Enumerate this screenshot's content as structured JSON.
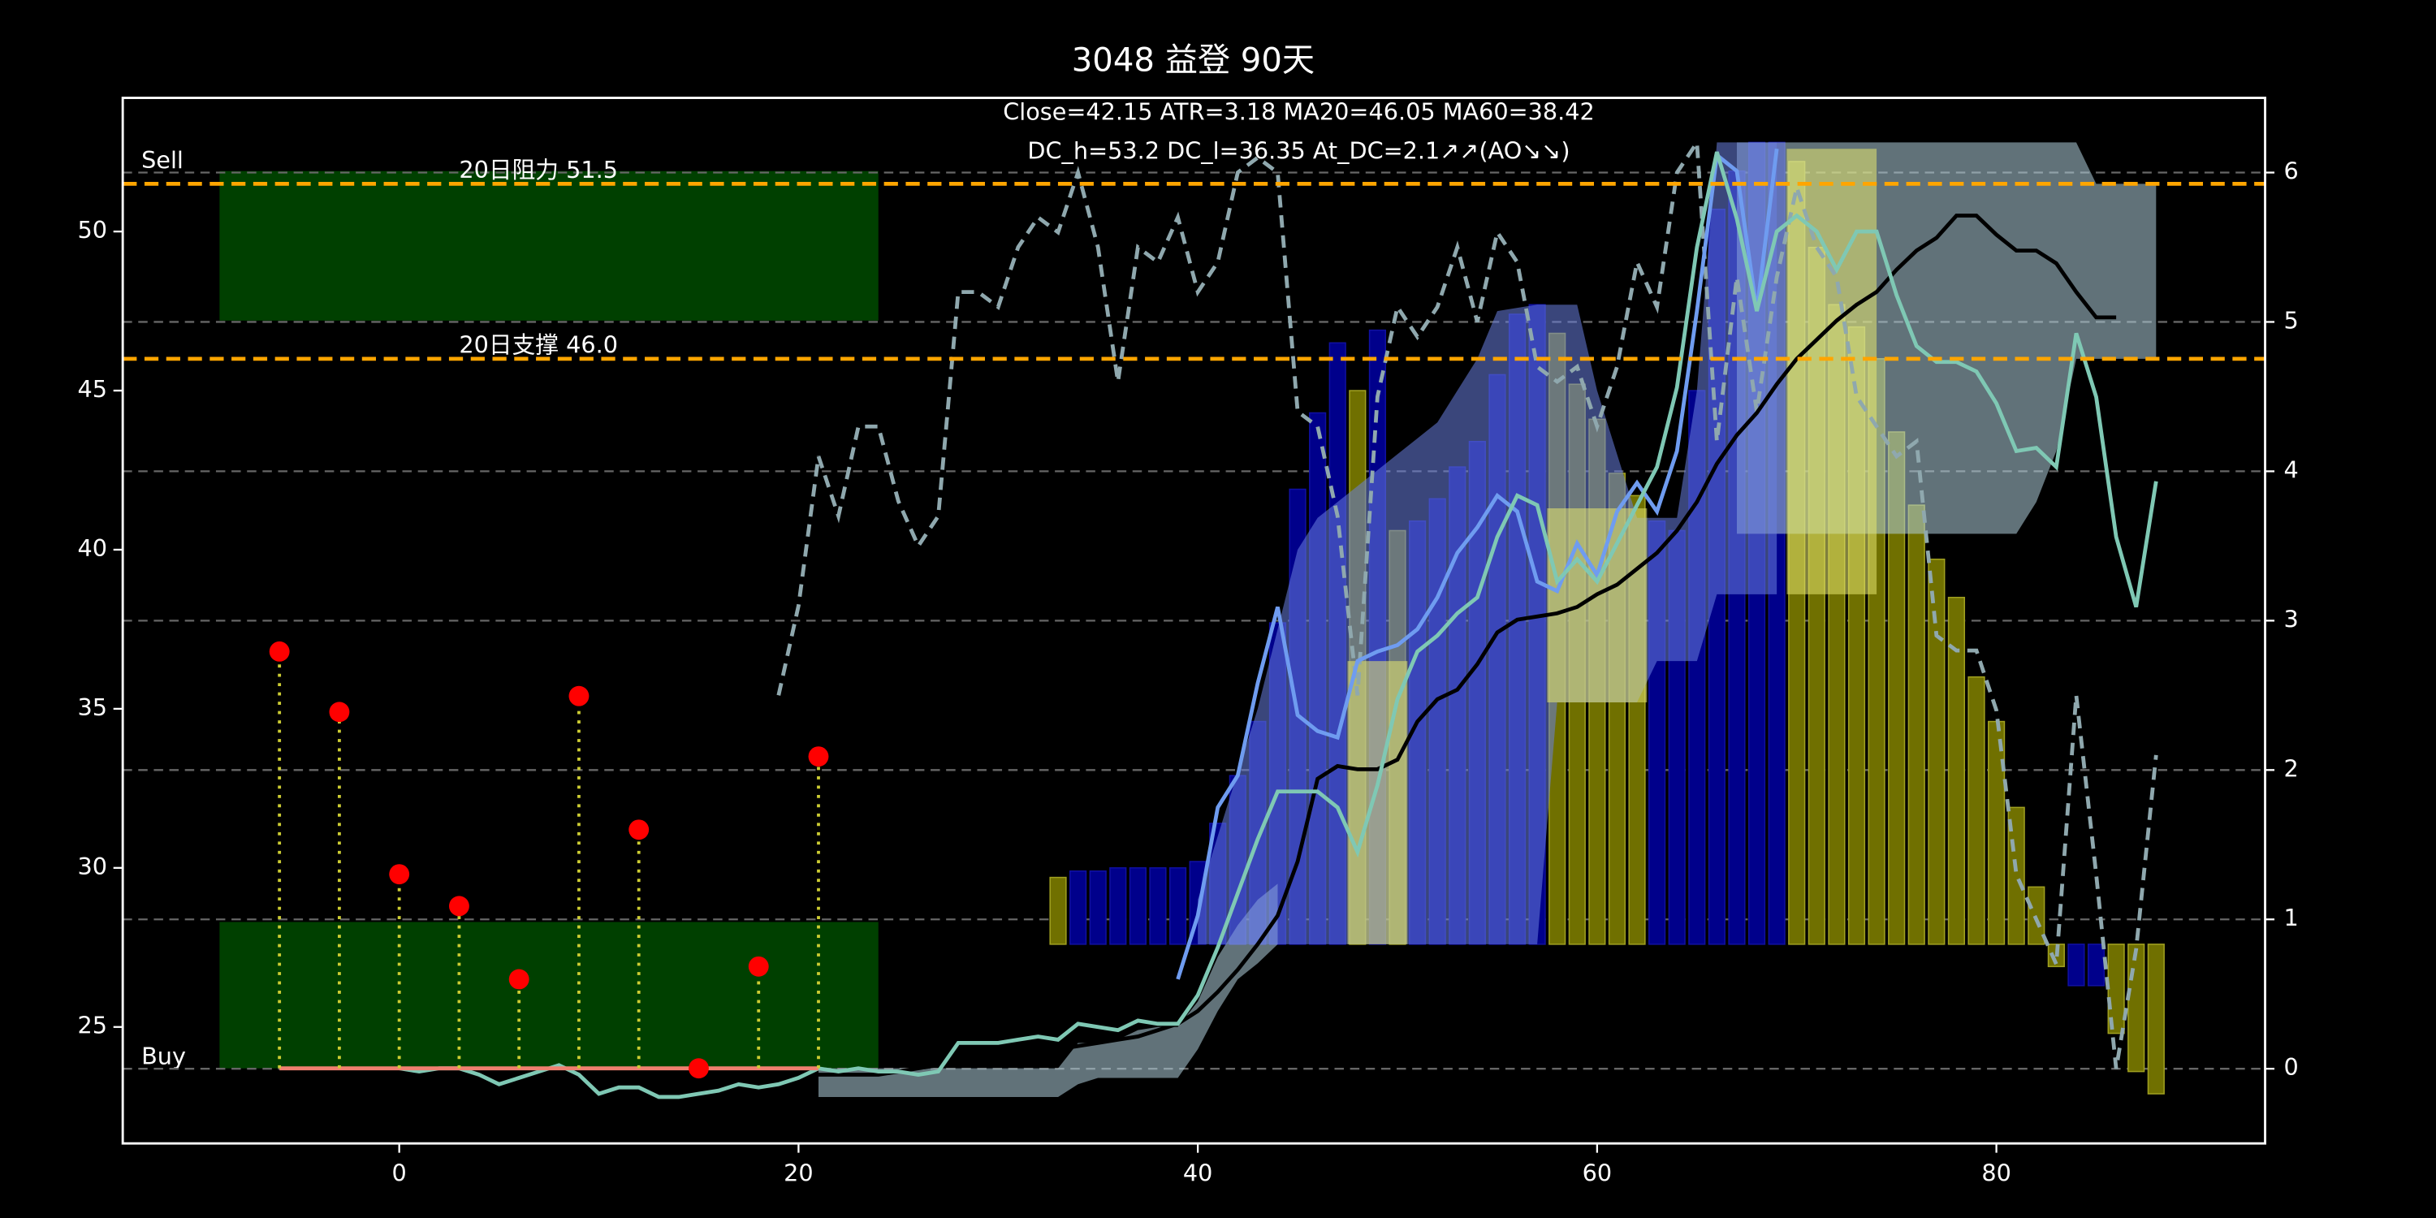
{
  "chart_data": {
    "type": "composite",
    "title": "3048 益登 90天",
    "annotations": [
      "Close=42.15 ATR=3.18 MA20=46.05 MA60=38.42",
      "DC_h=53.2 DC_l=36.35 At_DC=2.1↗↗(AO↘↘)"
    ],
    "xlim": [
      -13.85,
      93.46
    ],
    "ylim": [
      21.34,
      54.2
    ],
    "y2lim": [
      -0.5,
      6.5
    ],
    "xticks": [
      0,
      20,
      40,
      60,
      80
    ],
    "yticks": [
      25,
      30,
      35,
      40,
      45,
      50
    ],
    "y2ticks": [
      0,
      1,
      2,
      3,
      4,
      5,
      6
    ],
    "grid": "y2",
    "zones": [
      {
        "label": "Sell",
        "label_at": "top",
        "x": [
          -9,
          24
        ],
        "y": [
          47.2,
          51.9
        ],
        "color": "#004000"
      },
      {
        "label": "Buy",
        "label_at": "bottom",
        "x": [
          -9,
          24
        ],
        "y": [
          23.7,
          28.3
        ],
        "color": "#004000"
      }
    ],
    "hlines": [
      {
        "value": 51.5,
        "label": "20日阻力 51.5",
        "color": "#ffa500"
      },
      {
        "value": 46.0,
        "label": "20日支撑 46.0",
        "color": "#ffa500"
      }
    ],
    "bars": {
      "base": 27.6,
      "x": [
        33,
        34,
        35,
        36,
        37,
        38,
        39,
        40,
        41,
        42,
        43,
        44,
        45,
        46,
        47,
        48,
        49,
        50,
        51,
        52,
        53,
        54,
        55,
        56,
        57,
        58,
        59,
        60,
        61,
        62,
        63,
        64,
        65,
        66,
        67,
        68,
        69,
        70,
        71,
        72,
        73,
        74,
        75,
        76,
        77,
        78,
        79,
        80,
        81,
        82,
        83,
        84,
        85,
        86,
        87,
        88
      ],
      "values": [
        29.7,
        29.9,
        29.9,
        30.0,
        30.0,
        30.0,
        30.0,
        30.2,
        31.4,
        32.9,
        34.6,
        37.7,
        41.9,
        44.3,
        46.5,
        45.0,
        46.9,
        40.6,
        40.9,
        41.6,
        42.6,
        43.4,
        45.5,
        47.4,
        47.7,
        46.8,
        45.2,
        44.1,
        42.4,
        41.7,
        40.9,
        40.6,
        45.0,
        50.7,
        51.9,
        52.8,
        52.8,
        52.2,
        49.5,
        47.7,
        47.0,
        46.0,
        43.7,
        41.4,
        39.7,
        38.5,
        36.0,
        34.6,
        31.9,
        29.4,
        26.9,
        26.3,
        26.3,
        24.8,
        23.6,
        22.9
      ],
      "colors": [
        "#707000",
        "#00008b",
        "#00008b",
        "#00008b",
        "#00008b",
        "#00008b",
        "#00008b",
        "#00008b",
        "#00008b",
        "#00008b",
        "#00008b",
        "#00008b",
        "#00008b",
        "#00008b",
        "#00008b",
        "#707000",
        "#00008b",
        "#707000",
        "#00008b",
        "#00008b",
        "#00008b",
        "#00008b",
        "#00008b",
        "#00008b",
        "#00008b",
        "#707000",
        "#707000",
        "#707000",
        "#707000",
        "#707000",
        "#00008b",
        "#00008b",
        "#00008b",
        "#00008b",
        "#00008b",
        "#00008b",
        "#00008b",
        "#707000",
        "#707000",
        "#707000",
        "#707000",
        "#707000",
        "#707000",
        "#707000",
        "#707000",
        "#707000",
        "#707000",
        "#707000",
        "#707000",
        "#707000",
        "#707000",
        "#00008b",
        "#00008b",
        "#707000",
        "#707000",
        "#707000"
      ]
    },
    "bands": [
      {
        "color": "#b0d0dc",
        "x": [
          21,
          22,
          23,
          24,
          25,
          26,
          27,
          28,
          29,
          30,
          31,
          32,
          33,
          34,
          35,
          36,
          37,
          38,
          39,
          40,
          41,
          42,
          43,
          44
        ],
        "lower": [
          22.8,
          22.8,
          22.8,
          22.8,
          22.8,
          22.8,
          22.8,
          22.8,
          22.8,
          22.8,
          22.8,
          22.8,
          22.8,
          23.2,
          23.4,
          23.4,
          23.4,
          23.4,
          23.4,
          24.3,
          25.5,
          26.5,
          27.0,
          27.6
        ],
        "upper": [
          23.7,
          23.7,
          23.7,
          23.7,
          23.7,
          23.7,
          23.7,
          23.7,
          23.7,
          23.7,
          23.7,
          23.7,
          23.7,
          24.5,
          24.5,
          24.6,
          24.9,
          25.0,
          25.0,
          25.8,
          27.2,
          28.2,
          29.0,
          29.5
        ]
      },
      {
        "color": "#b0d0dc",
        "x": [
          67,
          68,
          69,
          70,
          71,
          72,
          73,
          74,
          75,
          76,
          77,
          78,
          79,
          80,
          81,
          82,
          83,
          84,
          85,
          86,
          87,
          88
        ],
        "lower": [
          40.5,
          40.5,
          40.5,
          40.5,
          40.5,
          40.5,
          40.5,
          40.5,
          40.5,
          40.5,
          40.5,
          40.5,
          40.5,
          40.5,
          40.5,
          41.5,
          43.1,
          46.0,
          46.0,
          46.0,
          46.0,
          46.0
        ],
        "upper": [
          52.8,
          52.8,
          52.8,
          52.8,
          52.8,
          52.8,
          52.8,
          52.8,
          52.8,
          52.8,
          52.8,
          52.8,
          52.8,
          52.8,
          52.8,
          52.8,
          52.8,
          52.8,
          51.5,
          51.5,
          51.5,
          51.5
        ]
      },
      {
        "color": "#6a7fe0",
        "x": [
          40,
          41,
          42,
          43,
          44,
          45,
          46,
          47,
          48,
          49,
          50,
          51,
          52,
          53,
          54,
          55,
          56,
          57,
          58,
          59,
          60,
          61,
          62,
          63,
          64,
          65,
          66,
          67,
          68,
          69
        ],
        "lower": [
          27.6,
          27.6,
          27.6,
          27.6,
          27.6,
          27.6,
          27.6,
          27.6,
          27.6,
          27.6,
          27.6,
          27.6,
          27.6,
          27.6,
          27.6,
          27.6,
          27.6,
          27.6,
          35.2,
          35.2,
          35.2,
          35.2,
          35.2,
          36.5,
          36.5,
          36.5,
          38.6,
          38.6,
          38.6,
          38.6
        ],
        "upper": [
          29.0,
          31,
          33,
          35,
          37.5,
          40,
          41,
          41.5,
          42,
          42.5,
          43,
          43.5,
          44,
          45,
          46,
          47.5,
          47.6,
          47.7,
          47.7,
          47.7,
          45,
          43,
          41,
          41,
          41,
          45,
          52.8,
          52.8,
          52.8,
          52.8
        ]
      },
      {
        "color": "#e8e870",
        "x": [
          47.5,
          50.5
        ],
        "lower": [
          27.6,
          27.6
        ],
        "upper": [
          36.5,
          36.5
        ]
      },
      {
        "color": "#e8e870",
        "x": [
          57.5,
          62.5
        ],
        "lower": [
          35.2,
          35.2
        ],
        "upper": [
          41.3,
          41.3
        ]
      },
      {
        "color": "#e8e870",
        "x": [
          69.5,
          74
        ],
        "lower": [
          38.6,
          38.6
        ],
        "upper": [
          52.6,
          52.6
        ]
      }
    ],
    "lines": [
      {
        "color": "#8fa8ae",
        "style": "dashed",
        "axis": "y2",
        "x": [
          19,
          20,
          21,
          22,
          23,
          24,
          25,
          26,
          27,
          28,
          29,
          30,
          31,
          32,
          33,
          34,
          35,
          36,
          37,
          38,
          39,
          40,
          41,
          42,
          43,
          44,
          45,
          46,
          47,
          48,
          49,
          50,
          51,
          52,
          53,
          54,
          55,
          56,
          57,
          58,
          59,
          60,
          61,
          62,
          63,
          64,
          65,
          66,
          67,
          68,
          69,
          70,
          71,
          72,
          73,
          74,
          75,
          76,
          77,
          78,
          79,
          80,
          81,
          82,
          83,
          84,
          85,
          86,
          87,
          88
        ],
        "values": [
          2.5,
          3.1,
          4.1,
          3.7,
          4.3,
          4.3,
          3.8,
          3.5,
          3.7,
          5.2,
          5.2,
          5.1,
          5.5,
          5.7,
          5.6,
          6.0,
          5.5,
          4.6,
          5.5,
          5.4,
          5.7,
          5.2,
          5.4,
          6.0,
          6.1,
          6.0,
          4.4,
          4.3,
          3.7,
          2.5,
          4.5,
          5.1,
          4.9,
          5.1,
          5.5,
          5.0,
          5.6,
          5.4,
          4.7,
          4.6,
          4.7,
          4.3,
          4.7,
          5.4,
          5.1,
          6.0,
          6.2,
          4.2,
          5.3,
          4.4,
          5.3,
          5.9,
          5.5,
          5.3,
          4.5,
          4.3,
          4.1,
          4.2,
          2.9,
          2.8,
          2.8,
          2.4,
          1.3,
          1.0,
          0.7,
          2.5,
          1.3,
          0.0,
          0.8,
          2.1
        ]
      },
      {
        "color": "#000000",
        "style": "solid",
        "x": [
          21,
          22,
          23,
          24,
          25,
          26,
          27,
          28,
          29,
          30,
          31,
          32,
          33,
          34,
          35,
          36,
          37,
          38,
          39,
          40,
          41,
          42,
          43,
          44,
          45,
          46,
          47,
          48,
          49,
          50,
          51,
          52,
          53,
          54,
          55,
          56,
          57,
          58,
          59,
          60,
          61,
          62,
          63,
          64,
          65,
          66,
          67,
          68,
          69,
          70,
          71,
          72,
          73,
          74,
          75,
          76,
          77,
          78,
          79,
          80,
          81,
          82,
          83,
          84,
          85,
          86
        ],
        "values": [
          23.5,
          23.5,
          23.5,
          23.5,
          23.6,
          23.7,
          23.8,
          23.9,
          24.0,
          24.0,
          24.1,
          24.2,
          24.3,
          24.4,
          24.5,
          24.6,
          24.7,
          24.9,
          25.1,
          25.5,
          26.1,
          26.8,
          27.6,
          28.5,
          30.2,
          32.8,
          33.2,
          33.1,
          33.1,
          33.4,
          34.6,
          35.3,
          35.6,
          36.4,
          37.4,
          37.8,
          37.9,
          38.0,
          38.2,
          38.6,
          38.9,
          39.4,
          39.9,
          40.6,
          41.5,
          42.7,
          43.6,
          44.3,
          45.2,
          46.0,
          46.6,
          47.2,
          47.7,
          48.1,
          48.8,
          49.4,
          49.8,
          50.5,
          50.5,
          49.9,
          49.4,
          49.4,
          49.0,
          48.1,
          47.3,
          47.3
        ]
      },
      {
        "color": "#6f9cf0",
        "style": "solid",
        "x": [
          39,
          40,
          41,
          42,
          43,
          44,
          45,
          46,
          47,
          48,
          49,
          50,
          51,
          52,
          53,
          54,
          55,
          56,
          57,
          58,
          59,
          60,
          61,
          62,
          63,
          64,
          65,
          66,
          67,
          68,
          69
        ],
        "values": [
          26.5,
          28.5,
          31.9,
          32.9,
          35.8,
          38.2,
          34.8,
          34.3,
          34.1,
          36.5,
          36.8,
          37.0,
          37.5,
          38.5,
          39.9,
          40.7,
          41.7,
          41.2,
          39.0,
          38.7,
          40.2,
          39.2,
          41.2,
          42.1,
          41.2,
          43.1,
          47.5,
          52.4,
          51.9,
          47.5,
          52.6
        ]
      },
      {
        "color": "#7fc8b4",
        "style": "solid",
        "x": [
          0,
          1,
          2,
          3,
          4,
          5,
          6,
          7,
          8,
          9,
          10,
          11,
          12,
          13,
          14,
          15,
          16,
          17,
          18,
          19,
          20,
          21,
          22,
          23,
          24,
          25,
          26,
          27,
          28,
          29,
          30,
          31,
          32,
          33,
          34,
          35,
          36,
          37,
          38,
          39,
          40,
          41,
          42,
          43,
          44,
          45,
          46,
          47,
          48,
          49,
          50,
          51,
          52,
          53,
          54,
          55,
          56,
          57,
          58,
          59,
          60,
          61,
          62,
          63,
          64,
          65,
          66,
          67,
          68,
          69,
          70,
          71,
          72,
          73,
          74,
          75,
          76,
          77,
          78,
          79,
          80,
          81,
          82,
          83,
          84,
          85,
          86,
          87,
          88
        ],
        "values": [
          23.7,
          23.6,
          23.7,
          23.7,
          23.5,
          23.2,
          23.4,
          23.6,
          23.8,
          23.5,
          22.9,
          23.1,
          23.1,
          22.8,
          22.8,
          22.9,
          23.0,
          23.2,
          23.1,
          23.2,
          23.4,
          23.7,
          23.6,
          23.7,
          23.6,
          23.6,
          23.5,
          23.6,
          24.5,
          24.5,
          24.5,
          24.6,
          24.7,
          24.6,
          25.1,
          25.0,
          24.9,
          25.2,
          25.1,
          25.1,
          26.0,
          27.5,
          29.2,
          30.9,
          32.4,
          32.4,
          32.4,
          31.9,
          30.5,
          32.6,
          35.3,
          36.8,
          37.3,
          38.0,
          38.5,
          40.4,
          41.7,
          41.4,
          39.0,
          39.7,
          39.0,
          40.2,
          41.4,
          42.6,
          45.1,
          49.5,
          52.5,
          50.4,
          47.5,
          50.0,
          50.5,
          50.0,
          48.8,
          50.0,
          50.0,
          48.0,
          46.4,
          45.9,
          45.9,
          45.6,
          44.6,
          43.1,
          43.2,
          42.6,
          46.8,
          44.8,
          40.4,
          38.2,
          42.15
        ]
      }
    ],
    "signals": {
      "x": [
        -6,
        -3,
        0,
        3,
        6,
        9,
        12,
        15,
        18,
        21
      ],
      "y": [
        36.8,
        34.9,
        29.8,
        28.8,
        26.5,
        35.4,
        31.2,
        23.7,
        26.9,
        33.5
      ],
      "base": 23.7,
      "color": "#ff0000",
      "stem_color": "#cccc33",
      "base_color": "#f08070"
    }
  }
}
